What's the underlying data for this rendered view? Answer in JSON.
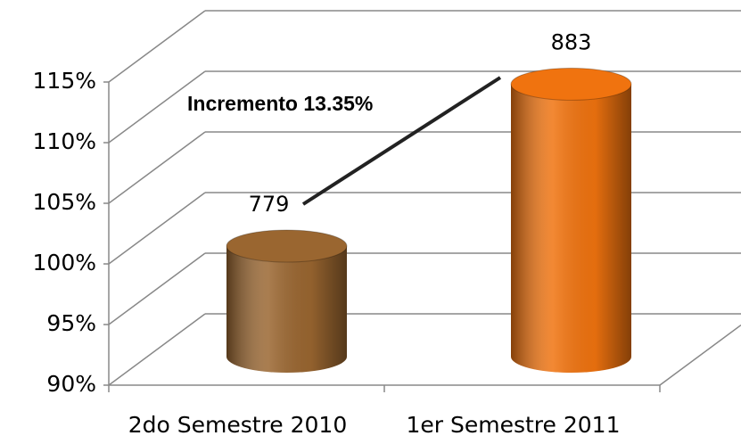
{
  "chart_data": {
    "type": "bar3d",
    "annotation": "Incremento 13.35%",
    "categories": [
      "2do Semestre 2010",
      "1er Semestre 2011"
    ],
    "values": [
      779,
      883
    ],
    "colors": [
      "#9a6630",
      "#f0730f"
    ],
    "ylim": [
      701.1,
      895.85
    ],
    "yticks": [
      {
        "value": 701.1,
        "label": "90%"
      },
      {
        "value": 740.05,
        "label": "95%"
      },
      {
        "value": 779,
        "label": "100%"
      },
      {
        "value": 817.95,
        "label": "105%"
      },
      {
        "value": 856.9,
        "label": "110%"
      },
      {
        "value": 895.85,
        "label": "115%"
      }
    ],
    "grid": true
  }
}
